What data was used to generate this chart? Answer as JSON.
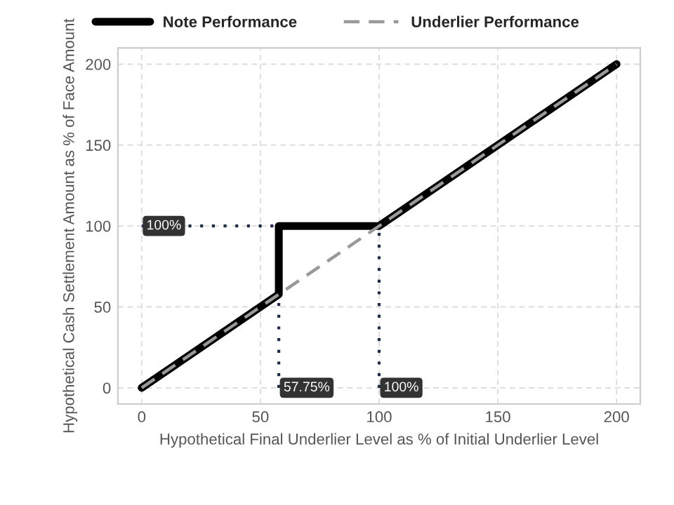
{
  "chart_data": {
    "type": "line",
    "xlabel": "Hypothetical Final Underlier Level as % of Initial Underlier Level",
    "ylabel": "Hypothetical Cash Settlement Amount as % of Face Amount",
    "series": [
      {
        "name": "Note Performance",
        "color": "#000000",
        "line_style": "solid",
        "x": [
          0,
          57.75,
          57.75,
          100,
          200
        ],
        "values": [
          0,
          57.75,
          100,
          100,
          200
        ]
      },
      {
        "name": "Underlier Performance",
        "color": "#999999",
        "line_style": "dashed",
        "x": [
          0,
          200
        ],
        "values": [
          0,
          200
        ]
      }
    ],
    "ref_lines": [
      {
        "axis": "y",
        "value": 100,
        "label": "100%",
        "color": "#1f2a44",
        "line_style": "dotted"
      },
      {
        "axis": "x",
        "value": 57.75,
        "label": "57.75%",
        "color": "#1f2a44",
        "line_style": "dotted"
      },
      {
        "axis": "x",
        "value": 100,
        "label": "100%",
        "color": "#1f2a44",
        "line_style": "dotted"
      }
    ],
    "xlim": [
      -10,
      210
    ],
    "ylim": [
      -10,
      210
    ],
    "xticks": [
      0,
      50,
      100,
      150,
      200
    ],
    "yticks": [
      0,
      50,
      100,
      150,
      200
    ],
    "grid": true,
    "legend": "top",
    "marker": "none"
  }
}
